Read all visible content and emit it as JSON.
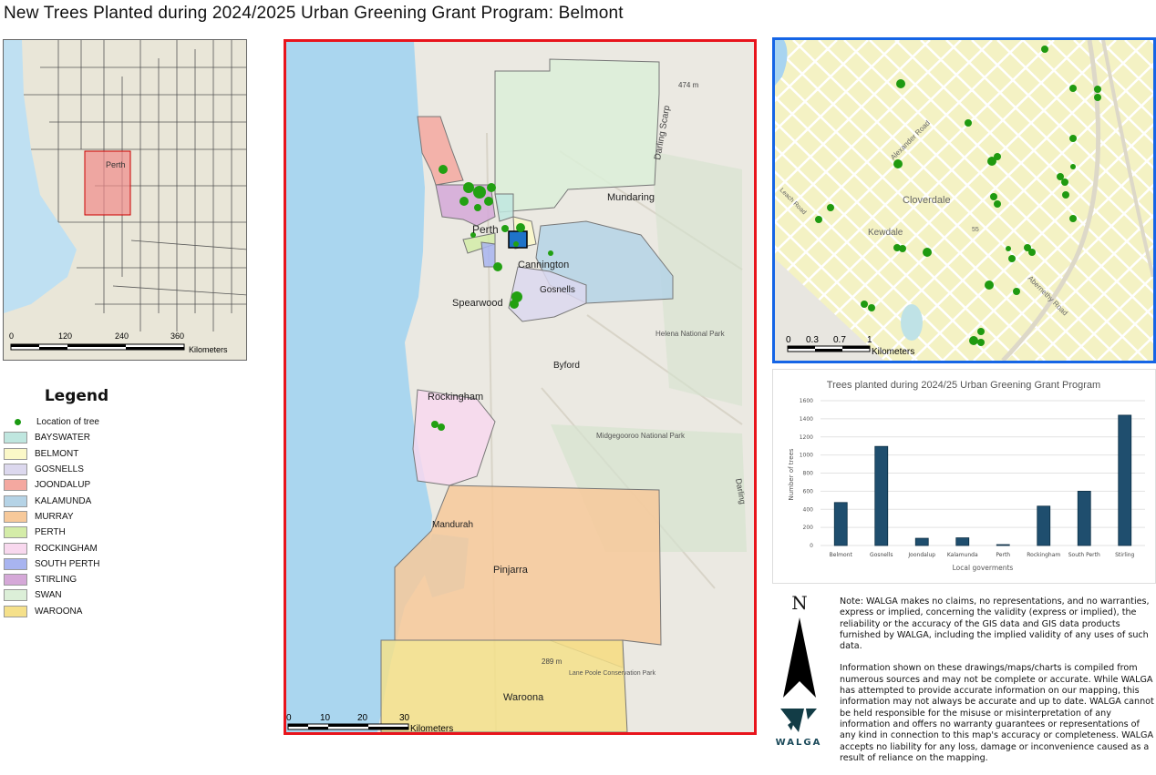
{
  "title": "New Trees Planted during 2024/2025 Urban Greening Grant Program: Belmont",
  "locator": {
    "place_label": "Perth",
    "scale_ticks": [
      "0",
      "120",
      "240",
      "360"
    ],
    "scale_unit": "Kilometers"
  },
  "legend": {
    "title": "Legend",
    "tree_label": "Location of tree",
    "tree_color": "#1b9a12",
    "items": [
      {
        "label": "BAYSWATER",
        "color": "#bfe6df"
      },
      {
        "label": "BELMONT",
        "color": "#fbf8c8"
      },
      {
        "label": "GOSNELLS",
        "color": "#dcd8ee"
      },
      {
        "label": "JOONDALUP",
        "color": "#f4a8a0"
      },
      {
        "label": "KALAMUNDA",
        "color": "#b5d3e6"
      },
      {
        "label": "MURRAY",
        "color": "#f7c99a"
      },
      {
        "label": "PERTH",
        "color": "#d4eca8"
      },
      {
        "label": "ROCKINGHAM",
        "color": "#f8d8ee"
      },
      {
        "label": "SOUTH PERTH",
        "color": "#a8b4f0"
      },
      {
        "label": "STIRLING",
        "color": "#d5a8d8"
      },
      {
        "label": "SWAN",
        "color": "#dcefd8"
      },
      {
        "label": "WAROONA",
        "color": "#f5e08a"
      }
    ]
  },
  "main_map": {
    "labels": {
      "mundaring": "Mundaring",
      "perth": "Perth",
      "cannington": "Cannington",
      "gosnells": "Gosnells",
      "spearwood": "Spearwood",
      "byford": "Byford",
      "rockingham": "Rockingham",
      "mandurah": "Mandurah",
      "pinjarra": "Pinjarra",
      "waroona": "Waroona",
      "helena": "Helena National Park",
      "midgegooroo": "Midgegooroo National Park",
      "darling_scarp": "Darling Scarp",
      "elev1": "474 m",
      "elev2": "289 m",
      "lane_poole": "Lane Poole Conservation Park",
      "darling": "Darling"
    },
    "scale_ticks": [
      "0",
      "10",
      "20",
      "30"
    ],
    "scale_unit": "Kilometers"
  },
  "inset_map": {
    "labels": {
      "cloverdale": "Cloverdale",
      "kewdale": "Kewdale",
      "leach": "Leach Road",
      "alexander": "Alexander Road",
      "abernethy": "Abernethy Road",
      "route": "55"
    },
    "scale_ticks": [
      "0",
      "0.3",
      "0.7",
      "1"
    ],
    "scale_unit": "Kilometers"
  },
  "chart_data": {
    "type": "bar",
    "title": "Trees planted during 2024/25 Urban Greening Grant Program",
    "xlabel": "Local goverments",
    "ylabel": "Number of trees",
    "categories": [
      "Belmont",
      "Gosnells",
      "Joondalup",
      "Kalamunda",
      "Perth",
      "Rockingham",
      "South Perth",
      "Stirling"
    ],
    "values": [
      475,
      1095,
      80,
      85,
      10,
      435,
      600,
      1440
    ],
    "ylim": [
      0,
      1600
    ],
    "yticks": [
      "0",
      "200",
      "400",
      "600",
      "800",
      "1000",
      "1200",
      "1400",
      "1600"
    ],
    "grid": true,
    "bar_color": "#1f4e6e"
  },
  "north": "N",
  "logo": "WALGA",
  "note": [
    "Note: WALGA makes no claims, no representations, and no warranties, express or implied, concerning the validity (express or implied), the reliability or the accuracy of the GIS data and GIS data products furnished by WALGA, including the implied validity of any uses of such data.",
    "Information shown on these drawings/maps/charts is compiled from numerous sources and may not be complete or accurate. While WALGA has attempted to provide accurate information on our mapping, this information may not always be accurate and up to date. WALGA cannot be held responsible for the misuse or misinterpretation of any information and offers no warranty guarantees or representations of any kind in connection to this map's accuracy or completeness. WALGA accepts no liability for any loss, damage or inconvenience caused as a result of reliance on the mapping."
  ]
}
